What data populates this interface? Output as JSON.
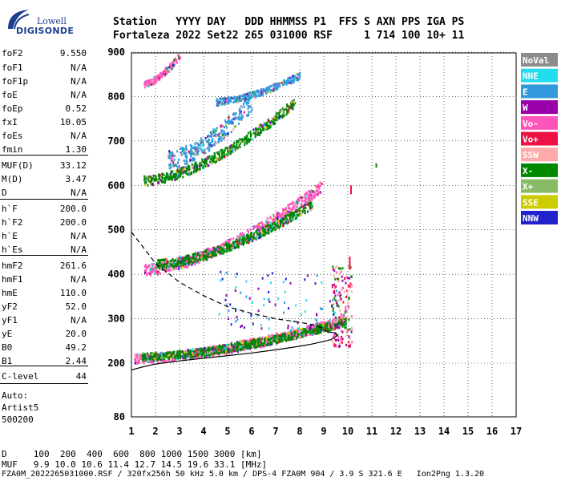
{
  "logo": {
    "line1": "Lowell",
    "line2": "DIGISONDE"
  },
  "header": {
    "line1": "Station   YYYY DAY   DDD HHMMSS P1  FFS S AXN PPS IGA PS",
    "line2": "Fortaleza 2022 Set22 265 031000 RSF     1 714 100 10+ 11"
  },
  "params": [
    {
      "name": "foF2",
      "value": "9.550"
    },
    {
      "name": "foF1",
      "value": "N/A"
    },
    {
      "name": "foF1p",
      "value": "N/A"
    },
    {
      "name": "foE",
      "value": "N/A"
    },
    {
      "name": "foEp",
      "value": "0.52"
    },
    {
      "name": "fxI",
      "value": "10.05"
    },
    {
      "name": "foEs",
      "value": "N/A"
    },
    {
      "name": "fmin",
      "value": "1.30"
    },
    {
      "name": "MUF(D)",
      "value": "33.12"
    },
    {
      "name": "M(D)",
      "value": "3.47"
    },
    {
      "name": "D",
      "value": "N/A"
    },
    {
      "name": "h`F",
      "value": "200.0"
    },
    {
      "name": "h`F2",
      "value": "200.0"
    },
    {
      "name": "h`E",
      "value": "N/A"
    },
    {
      "name": "h`Es",
      "value": "N/A"
    },
    {
      "name": "hmF2",
      "value": "261.6"
    },
    {
      "name": "hmF1",
      "value": "N/A"
    },
    {
      "name": "hmE",
      "value": "110.0"
    },
    {
      "name": "yF2",
      "value": "52.0"
    },
    {
      "name": "yF1",
      "value": "N/A"
    },
    {
      "name": "yE",
      "value": "20.0"
    },
    {
      "name": "B0",
      "value": "49.2"
    },
    {
      "name": "B1",
      "value": "2.44"
    },
    {
      "name": "C-level",
      "value": "44"
    }
  ],
  "autoscale": {
    "line1": "Auto:",
    "line2": "Artist5",
    "line3": "500200"
  },
  "legend": [
    {
      "label": "NoVal",
      "color": "#8c8c8c"
    },
    {
      "label": "NNE",
      "color": "#22ddee"
    },
    {
      "label": "E",
      "color": "#3399dd"
    },
    {
      "label": "W",
      "color": "#9900aa"
    },
    {
      "label": "Vo-",
      "color": "#ff55bb"
    },
    {
      "label": "Vo+",
      "color": "#ee1144"
    },
    {
      "label": "SSW",
      "color": "#ffaaaa"
    },
    {
      "label": "X-",
      "color": "#008800"
    },
    {
      "label": "X+",
      "color": "#88bb66"
    },
    {
      "label": "SSE",
      "color": "#cccc00"
    },
    {
      "label": "NNW",
      "color": "#2222cc"
    }
  ],
  "footer": {
    "line1": "D     100  200  400  600  800 1000 1500 3000 [km]",
    "line2": "MUF   9.9 10.0 10.6 11.4 12.7 14.5 19.6 33.1 [MHz]",
    "line3": "FZA0M_2022265031000.RSF / 320fx256h 50 kHz 5.0 km / DPS-4 FZA0M 904 / 3.9 S 321.6 E   Ion2Png 1.3.20"
  },
  "chart_data": {
    "type": "scatter",
    "xlim": [
      1,
      17
    ],
    "ylim": [
      80,
      900
    ],
    "x_ticks": [
      1,
      2,
      3,
      4,
      5,
      6,
      7,
      8,
      9,
      10,
      11,
      12,
      13,
      14,
      15,
      16,
      17
    ],
    "y_ticks": [
      80,
      200,
      300,
      400,
      500,
      600,
      700,
      800,
      900
    ],
    "grid": true,
    "legend_position": "right",
    "traces": [
      {
        "name": "o-trace F",
        "color": "#ff55bb",
        "x0": 1.1,
        "x1": 9.95,
        "h0": 212,
        "h1": 300,
        "spread": 22
      },
      {
        "name": "o-trace F mixed",
        "color": "#008800",
        "x0": 1.4,
        "x1": 9.9,
        "h0": 216,
        "h1": 295,
        "spread": 18
      },
      {
        "name": "2nd hop",
        "color": "#ff55bb",
        "x0": 1.5,
        "x1": 8.9,
        "h0": 412,
        "h1": 600,
        "spread": 25
      },
      {
        "name": "2nd hop mixed",
        "color": "#008800",
        "x0": 2.0,
        "x1": 8.5,
        "h0": 425,
        "h1": 560,
        "spread": 20
      },
      {
        "name": "3rd hop",
        "color": "#008800",
        "x0": 1.5,
        "x1": 7.8,
        "h0": 612,
        "h1": 790,
        "spread": 22
      },
      {
        "name": "3rd hop E",
        "color": "#3399dd",
        "x0": 2.5,
        "x1": 6.0,
        "h0": 660,
        "h1": 790,
        "spread": 40
      },
      {
        "name": "4th hop",
        "color": "#3399dd",
        "x0": 4.5,
        "x1": 8.0,
        "h0": 790,
        "h1": 850,
        "spread": 15
      },
      {
        "name": "4th hop Vo-",
        "color": "#ff55bb",
        "x0": 1.5,
        "x1": 3.0,
        "h0": 830,
        "h1": 895,
        "spread": 15
      }
    ],
    "profile": [
      [
        1.0,
        185
      ],
      [
        1.5,
        192
      ],
      [
        2.0,
        198
      ],
      [
        3.0,
        205
      ],
      [
        4.0,
        211
      ],
      [
        5.0,
        217
      ],
      [
        6.0,
        223
      ],
      [
        7.0,
        230
      ],
      [
        8.0,
        238
      ],
      [
        8.5,
        243
      ],
      [
        9.0,
        249
      ],
      [
        9.3,
        253
      ],
      [
        9.55,
        262
      ],
      [
        9.5,
        268
      ],
      [
        9.2,
        270
      ]
    ],
    "dashed_profile": [
      [
        1.0,
        495
      ],
      [
        1.5,
        460
      ],
      [
        2.0,
        425
      ],
      [
        3.0,
        382
      ],
      [
        4.0,
        352
      ],
      [
        5.0,
        327
      ],
      [
        6.0,
        312
      ],
      [
        7.0,
        300
      ],
      [
        8.0,
        292
      ],
      [
        8.5,
        287
      ],
      [
        9.0,
        278
      ],
      [
        9.2,
        268
      ]
    ]
  }
}
